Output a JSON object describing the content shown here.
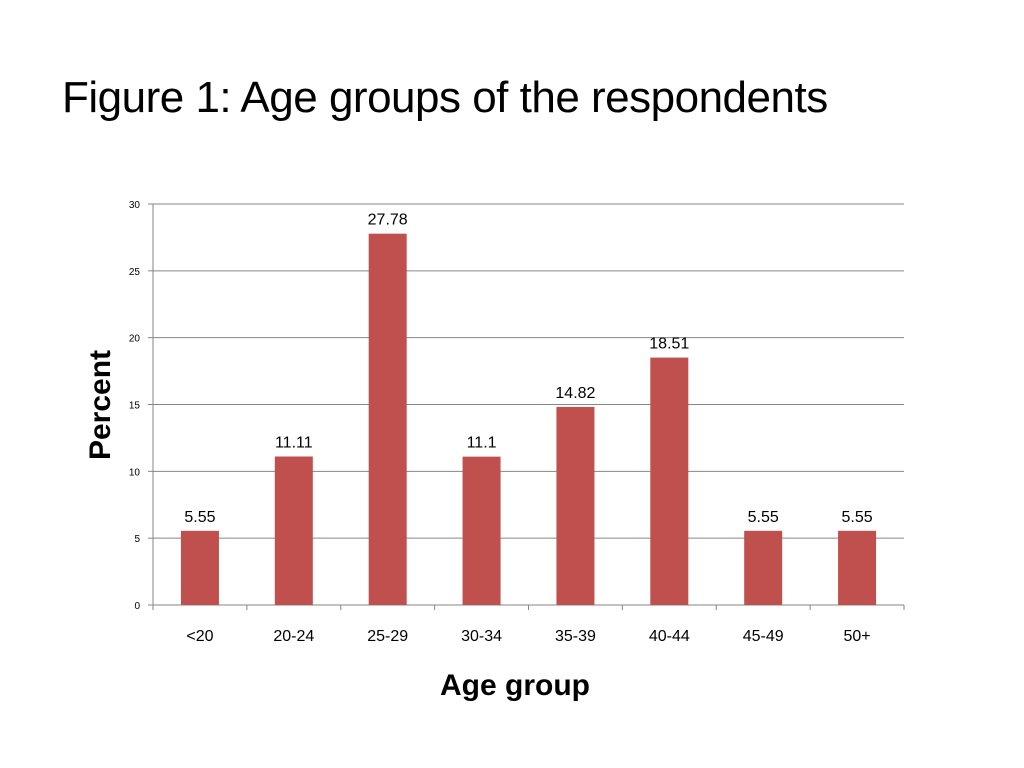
{
  "slide": {
    "title": "Figure 1: Age groups of the respondents"
  },
  "chart_data": {
    "type": "bar",
    "title": "",
    "xlabel": "Age group",
    "ylabel": "Percent",
    "categories": [
      "<20",
      "20-24",
      "25-29",
      "30-34",
      "35-39",
      "40-44",
      "45-49",
      "50+"
    ],
    "values": [
      5.55,
      11.11,
      27.78,
      11.1,
      14.82,
      18.51,
      5.55,
      5.55
    ],
    "value_labels": [
      "5.55",
      "11.11",
      "27.78",
      "11.1",
      "14.82",
      "18.51",
      "5.55",
      "5.55"
    ],
    "ylim": [
      0,
      30
    ],
    "yticks": [
      0,
      5,
      10,
      15,
      20,
      25,
      30
    ],
    "grid": true,
    "legend": "none",
    "bar_color": "#C0504D",
    "grid_color": "#868686"
  }
}
